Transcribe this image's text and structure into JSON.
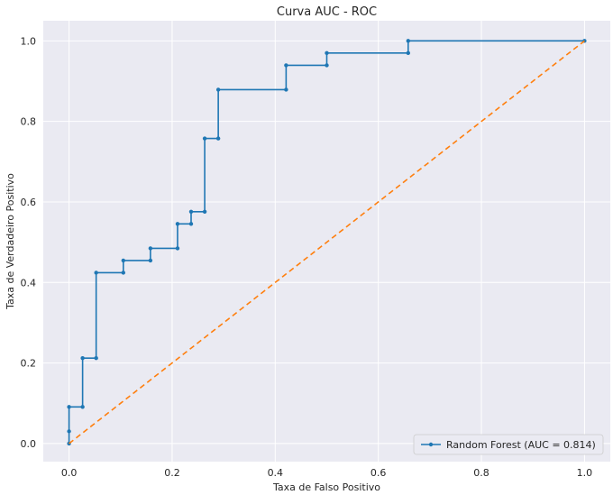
{
  "chart_data": {
    "type": "line",
    "title": "Curva AUC - ROC",
    "xlabel": "Taxa de Falso Positivo",
    "ylabel": "Taxa de Verdadeiro Positivo",
    "xlim": [
      -0.05,
      1.05
    ],
    "ylim": [
      -0.045,
      1.05
    ],
    "xticks": [
      0.0,
      0.2,
      0.4,
      0.6,
      0.8,
      1.0
    ],
    "yticks": [
      0.0,
      0.2,
      0.4,
      0.6,
      0.8,
      1.0
    ],
    "xtick_labels": [
      "0.0",
      "0.2",
      "0.4",
      "0.6",
      "0.8",
      "1.0"
    ],
    "ytick_labels": [
      "0.0",
      "0.2",
      "0.4",
      "0.6",
      "0.8",
      "1.0"
    ],
    "grid": true,
    "legend_position": "lower-right",
    "series": [
      {
        "name": "Random Forest (AUC = 0.814)",
        "color": "#1f77b4",
        "marker": "dot",
        "x": [
          0.0,
          0.0,
          0.0,
          0.0263,
          0.0263,
          0.0526,
          0.0526,
          0.1053,
          0.1053,
          0.1579,
          0.1579,
          0.2105,
          0.2105,
          0.2368,
          0.2368,
          0.2632,
          0.2632,
          0.2895,
          0.2895,
          0.4211,
          0.4211,
          0.5,
          0.5,
          0.6579,
          0.6579,
          1.0
        ],
        "y": [
          0.0,
          0.0303,
          0.0909,
          0.0909,
          0.2121,
          0.2121,
          0.4242,
          0.4242,
          0.4545,
          0.4545,
          0.4848,
          0.4848,
          0.5455,
          0.5455,
          0.5758,
          0.5758,
          0.7576,
          0.7576,
          0.8788,
          0.8788,
          0.9394,
          0.9394,
          0.9697,
          0.9697,
          1.0,
          1.0
        ]
      },
      {
        "color": "#ff7f0e",
        "style": "dashed",
        "x": [
          0.0,
          1.0
        ],
        "y": [
          0.0,
          1.0
        ]
      }
    ]
  }
}
